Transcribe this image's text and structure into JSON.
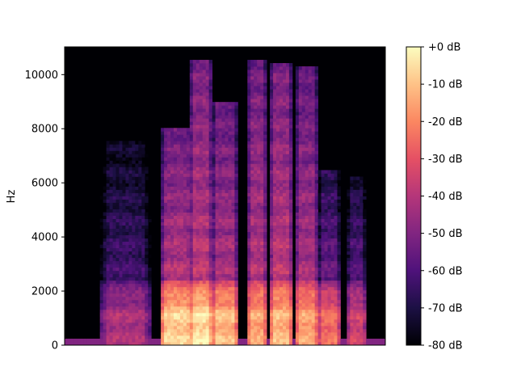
{
  "chart_data": {
    "type": "heatmap",
    "kind": "spectrogram",
    "colormap": "magma",
    "title": "",
    "xlabel": "",
    "ylabel": "Hz",
    "x_ticks_shown": false,
    "ylim": [
      0,
      11025
    ],
    "y_ticks": [
      0,
      2000,
      4000,
      6000,
      8000,
      10000
    ],
    "y_tick_labels": [
      "0",
      "2000",
      "4000",
      "6000",
      "8000",
      "10000"
    ],
    "colorbar": {
      "range_db": [
        -80,
        0
      ],
      "ticks": [
        0,
        -10,
        -20,
        -30,
        -40,
        -50,
        -60,
        -70,
        -80
      ],
      "tick_labels": [
        "+0 dB",
        "-10 dB",
        "-20 dB",
        "-30 dB",
        "-40 dB",
        "-50 dB",
        "-60 dB",
        "-70 dB",
        "-80 dB"
      ]
    },
    "bursts": [
      {
        "start": 0.11,
        "end": 0.27,
        "bandwidth_hz": 7500,
        "low_freq_db": -42,
        "mid_freq_db": -62
      },
      {
        "start": 0.3,
        "end": 0.4,
        "bandwidth_hz": 8000,
        "low_freq_db": -8,
        "mid_freq_db": -40
      },
      {
        "start": 0.39,
        "end": 0.46,
        "bandwidth_hz": 10600,
        "low_freq_db": -5,
        "mid_freq_db": -38
      },
      {
        "start": 0.46,
        "end": 0.54,
        "bandwidth_hz": 9000,
        "low_freq_db": -12,
        "mid_freq_db": -42
      },
      {
        "start": 0.57,
        "end": 0.63,
        "bandwidth_hz": 10600,
        "low_freq_db": -15,
        "mid_freq_db": -40
      },
      {
        "start": 0.64,
        "end": 0.71,
        "bandwidth_hz": 10400,
        "low_freq_db": -12,
        "mid_freq_db": -38
      },
      {
        "start": 0.72,
        "end": 0.79,
        "bandwidth_hz": 10300,
        "low_freq_db": -15,
        "mid_freq_db": -42
      },
      {
        "start": 0.79,
        "end": 0.86,
        "bandwidth_hz": 6500,
        "low_freq_db": -25,
        "mid_freq_db": -55
      },
      {
        "start": 0.88,
        "end": 0.94,
        "bandwidth_hz": 6200,
        "low_freq_db": -35,
        "mid_freq_db": -58
      }
    ]
  }
}
